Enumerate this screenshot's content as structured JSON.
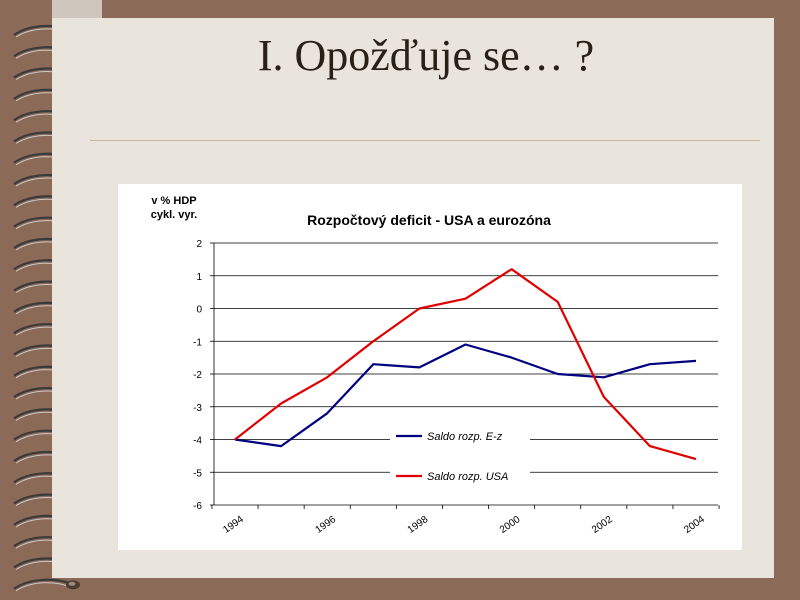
{
  "slide": {
    "title": "I. Opožďuje se… ?"
  },
  "chart_data": {
    "type": "line",
    "title": "Rozpočtový deficit  - USA a eurozóna",
    "ylabel_line1": "v % HDP",
    "ylabel_line2": "cykl. vyr.",
    "ylim": [
      -6,
      2
    ],
    "yticks": [
      2,
      1,
      0,
      -1,
      -2,
      -3,
      -4,
      -5,
      -6
    ],
    "x": [
      1994,
      1995,
      1996,
      1997,
      1998,
      1999,
      2000,
      2001,
      2002,
      2003,
      2004
    ],
    "xtick_labels": [
      "1994",
      "1996",
      "1998",
      "2000",
      "2002",
      "2004"
    ],
    "xtick_values": [
      1994,
      1996,
      1998,
      2000,
      2002,
      2004
    ],
    "grid": true,
    "legend_position": "lower-center",
    "series": [
      {
        "name": "Saldo rozp.   E-z",
        "color": "#000080",
        "values": [
          -4.0,
          -4.2,
          -3.2,
          -1.7,
          -1.8,
          -1.1,
          -1.5,
          -2.0,
          -2.1,
          -1.7,
          -1.6
        ]
      },
      {
        "name": "Saldo rozp. USA",
        "color": "#e00000",
        "values": [
          -4.0,
          -2.9,
          -2.1,
          -1.0,
          0.0,
          0.3,
          1.2,
          0.2,
          -2.7,
          -4.2,
          -4.6
        ]
      }
    ]
  }
}
